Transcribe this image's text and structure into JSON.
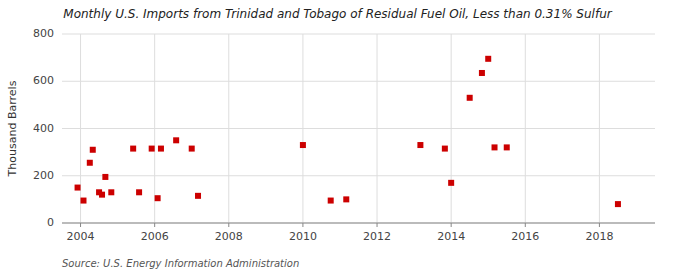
{
  "chart_data": {
    "type": "scatter",
    "title": "Monthly U.S. Imports from Trinidad and Tobago of Residual Fuel Oil, Less than 0.31% Sulfur",
    "ylabel": "Thousand Barrels",
    "source": "Source: U.S. Energy Information Administration",
    "color": "#cc0000",
    "marker": "square",
    "grid": true,
    "xlim": [
      2003.5,
      2019.5
    ],
    "ylim": [
      0,
      800
    ],
    "xticks": [
      2004,
      2006,
      2008,
      2010,
      2012,
      2014,
      2016,
      2018
    ],
    "yticks": [
      0,
      200,
      400,
      600,
      800
    ],
    "x": [
      2003.92,
      2004.08,
      2004.25,
      2004.33,
      2004.5,
      2004.58,
      2004.67,
      2004.83,
      2005.42,
      2005.58,
      2005.92,
      2006.08,
      2006.17,
      2006.58,
      2007.0,
      2007.17,
      2010.0,
      2010.75,
      2011.17,
      2013.17,
      2013.83,
      2014.0,
      2014.5,
      2014.83,
      2015.0,
      2015.17,
      2015.5,
      2018.5
    ],
    "values": [
      150,
      95,
      255,
      310,
      130,
      120,
      195,
      130,
      315,
      130,
      315,
      105,
      315,
      350,
      315,
      115,
      330,
      95,
      100,
      330,
      315,
      170,
      530,
      635,
      695,
      320,
      320,
      80
    ]
  }
}
